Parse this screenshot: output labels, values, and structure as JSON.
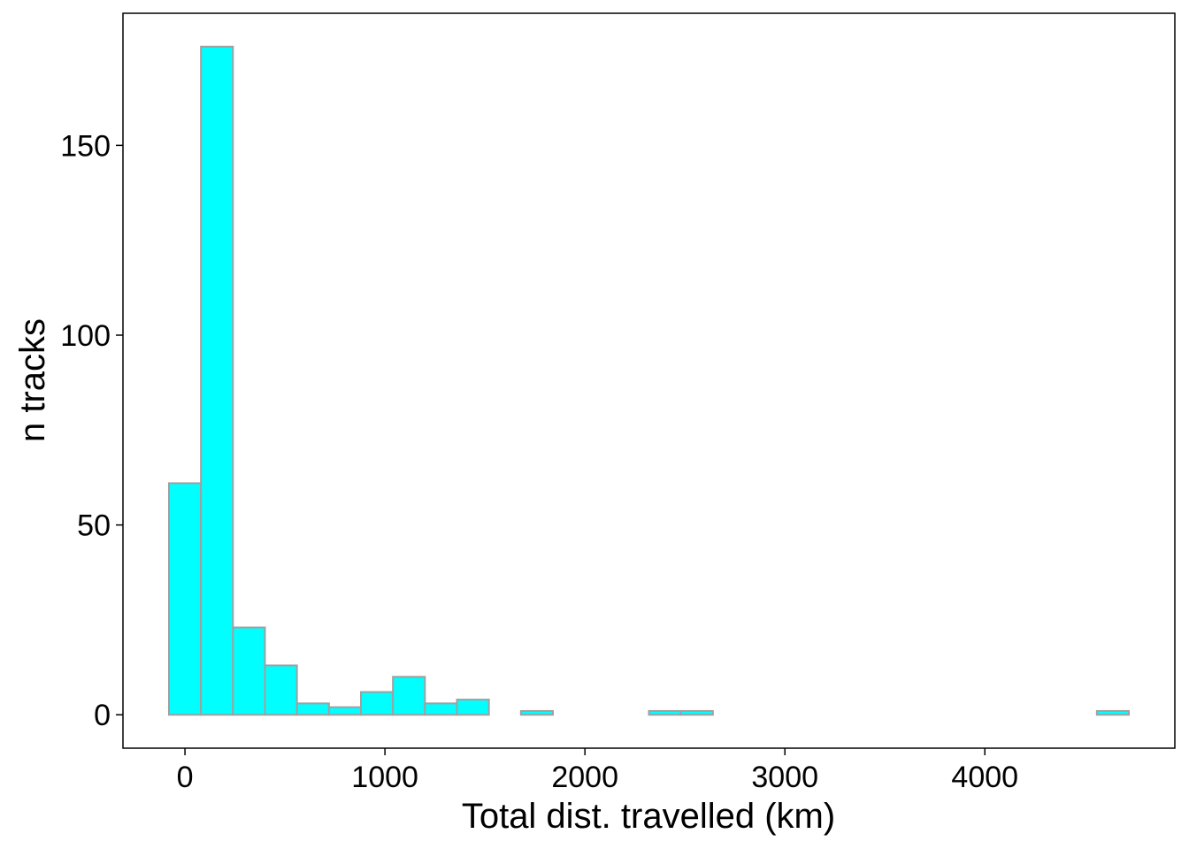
{
  "chart_data": {
    "type": "bar",
    "subtype": "histogram",
    "title": "",
    "xlabel": "Total dist. travelled (km)",
    "ylabel": "n tracks",
    "bin_width": 160,
    "bins": [
      {
        "start": -80,
        "end": 80,
        "count": 61
      },
      {
        "start": 80,
        "end": 240,
        "count": 176
      },
      {
        "start": 240,
        "end": 400,
        "count": 23
      },
      {
        "start": 400,
        "end": 560,
        "count": 13
      },
      {
        "start": 560,
        "end": 720,
        "count": 3
      },
      {
        "start": 720,
        "end": 880,
        "count": 2
      },
      {
        "start": 880,
        "end": 1040,
        "count": 6
      },
      {
        "start": 1040,
        "end": 1200,
        "count": 10
      },
      {
        "start": 1200,
        "end": 1360,
        "count": 3
      },
      {
        "start": 1360,
        "end": 1520,
        "count": 4
      },
      {
        "start": 1520,
        "end": 1680,
        "count": 0
      },
      {
        "start": 1680,
        "end": 1840,
        "count": 1
      },
      {
        "start": 1840,
        "end": 2000,
        "count": 0
      },
      {
        "start": 2000,
        "end": 2160,
        "count": 0
      },
      {
        "start": 2160,
        "end": 2320,
        "count": 0
      },
      {
        "start": 2320,
        "end": 2480,
        "count": 1
      },
      {
        "start": 2480,
        "end": 2640,
        "count": 1
      },
      {
        "start": 2640,
        "end": 2800,
        "count": 0
      },
      {
        "start": 2800,
        "end": 2960,
        "count": 0
      },
      {
        "start": 2960,
        "end": 3120,
        "count": 0
      },
      {
        "start": 3120,
        "end": 3280,
        "count": 0
      },
      {
        "start": 3280,
        "end": 3440,
        "count": 0
      },
      {
        "start": 3440,
        "end": 3600,
        "count": 0
      },
      {
        "start": 3600,
        "end": 3760,
        "count": 0
      },
      {
        "start": 3760,
        "end": 3920,
        "count": 0
      },
      {
        "start": 3920,
        "end": 4080,
        "count": 0
      },
      {
        "start": 4080,
        "end": 4240,
        "count": 0
      },
      {
        "start": 4240,
        "end": 4400,
        "count": 0
      },
      {
        "start": 4400,
        "end": 4560,
        "count": 0
      },
      {
        "start": 4560,
        "end": 4720,
        "count": 1
      }
    ],
    "xlim": [
      -310,
      4950
    ],
    "ylim": [
      -8.8,
      184.8
    ],
    "x_ticks": [
      0,
      1000,
      2000,
      3000,
      4000
    ],
    "x_tick_labels": [
      "0",
      "1000",
      "2000",
      "3000",
      "4000"
    ],
    "y_ticks": [
      0,
      50,
      100,
      150
    ],
    "y_tick_labels": [
      "0",
      "50",
      "100",
      "150"
    ],
    "grid": false,
    "legend": "none",
    "colors": {
      "bar_fill": "#00FFFF",
      "bar_outline": "#A0A0A0",
      "panel_border": "#000000",
      "text": "#000000",
      "background": "#FFFFFF"
    }
  }
}
